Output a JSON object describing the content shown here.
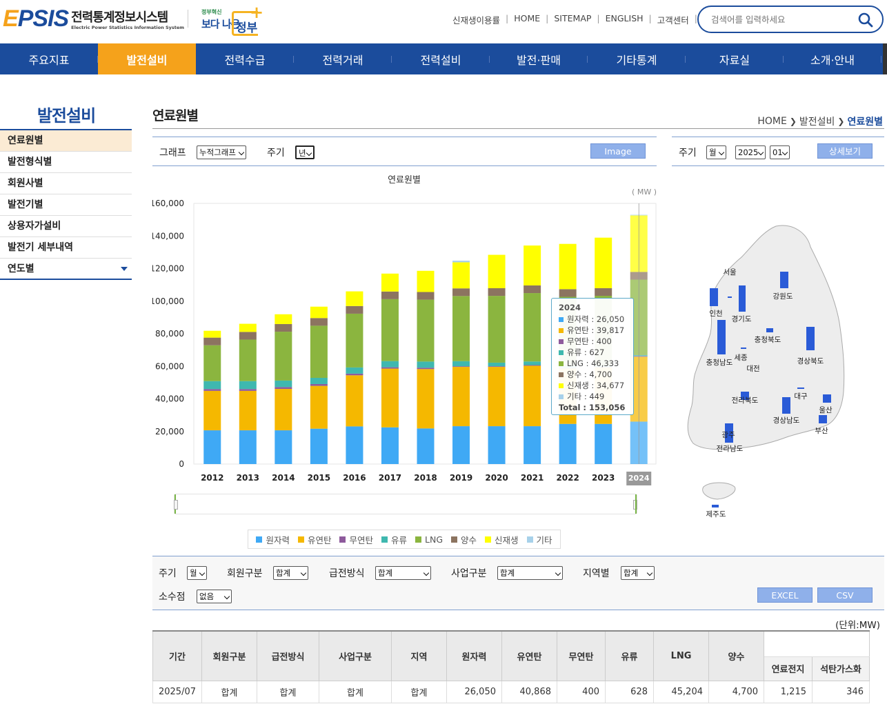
{
  "header": {
    "logo_word": "EPSIS",
    "logo_ko": "전력통계정보시스템",
    "logo_en": "Electric Power Statistics Information System",
    "gov_small": "정부혁신",
    "gov_big": "보다 나은",
    "gov_jb": "정부",
    "util_links": [
      "신재생이용률",
      "HOME",
      "SITEMAP",
      "ENGLISH",
      "고객센터"
    ],
    "search_placeholder": "검색어를 입력하세요"
  },
  "nav": [
    "주요지표",
    "발전설비",
    "전력수급",
    "전력거래",
    "전력설비",
    "발전·판매",
    "기타통계",
    "자료실",
    "소개·안내"
  ],
  "sidebar": {
    "title": "발전설비",
    "items": [
      "연료원별",
      "발전형식별",
      "회원사별",
      "발전기별",
      "상용자가설비",
      "발전기 세부내역",
      "연도별"
    ]
  },
  "page": {
    "title": "연료원별",
    "breadcrumb": [
      "HOME",
      "발전설비",
      "연료원별"
    ]
  },
  "toolbar": {
    "graph_label": "그래프",
    "graph_value": "누적그래프",
    "cycle_label": "주기",
    "cycle_value": "년",
    "image_button": "Image"
  },
  "map_toolbar": {
    "cycle_label": "주기",
    "cycle_value": "월",
    "year_value": "2025",
    "month_value": "01",
    "detail_button": "상세보기"
  },
  "map": {
    "regions": [
      "인천",
      "서울",
      "경기도",
      "강원도",
      "충청북도",
      "세종",
      "대전",
      "충청남도",
      "경상북도",
      "전라북도",
      "대구",
      "울산",
      "경상남도",
      "부산",
      "광주",
      "전라남도",
      "제주도"
    ]
  },
  "chart_data": {
    "type": "bar",
    "title": "연료원별",
    "unit": "( MW )",
    "categories": [
      "2012",
      "2013",
      "2014",
      "2015",
      "2016",
      "2017",
      "2018",
      "2019",
      "2020",
      "2021",
      "2022",
      "2023",
      "2024"
    ],
    "ylim": [
      0,
      160000
    ],
    "yticks": [
      "160,000",
      "140,000",
      "120,000",
      "100,000",
      "80,000",
      "60,000",
      "40,000",
      "20,000",
      "0"
    ],
    "stacked": true,
    "series": [
      {
        "name": "원자력",
        "color": "#3fa9f5",
        "values": [
          20716,
          20716,
          20716,
          21716,
          23116,
          22529,
          21850,
          23250,
          23250,
          23250,
          24650,
          24650,
          26050
        ]
      },
      {
        "name": "유연탄",
        "color": "#f5b800",
        "values": [
          24205,
          24205,
          25405,
          26274,
          31360,
          36058,
          36441,
          36393,
          36393,
          37100,
          34000,
          34600,
          39817
        ]
      },
      {
        "name": "무연탄",
        "color": "#8e5a9c",
        "values": [
          1125,
          1125,
          1125,
          1125,
          1025,
          825,
          825,
          400,
          400,
          400,
          400,
          400,
          400
        ]
      },
      {
        "name": "유류",
        "color": "#3fb8af",
        "values": [
          4866,
          4866,
          4000,
          3800,
          3800,
          3800,
          3800,
          3100,
          2200,
          2200,
          1100,
          627,
          627
        ]
      },
      {
        "name": "LNG",
        "color": "#8bb53f",
        "values": [
          22000,
          25500,
          30000,
          32000,
          33000,
          38000,
          38000,
          40000,
          41000,
          42000,
          42500,
          43000,
          46333
        ]
      },
      {
        "name": "양수",
        "color": "#8c7460",
        "values": [
          4700,
          4700,
          4700,
          4700,
          4700,
          4700,
          4700,
          4700,
          4700,
          4700,
          4700,
          4700,
          4700
        ]
      },
      {
        "name": "신재생",
        "color": "#ffff00",
        "values": [
          4200,
          5000,
          6000,
          7000,
          9000,
          11000,
          13000,
          16000,
          20500,
          24500,
          27800,
          31000,
          34677
        ]
      },
      {
        "name": "기타",
        "color": "#a7d1ea",
        "values": [
          0,
          0,
          0,
          0,
          0,
          0,
          0,
          1000,
          0,
          0,
          0,
          0,
          449
        ]
      }
    ],
    "highlight": "2024",
    "tooltip": {
      "year": "2024",
      "rows": [
        {
          "label": "원자력 : 26,050",
          "color": "#3fa9f5"
        },
        {
          "label": "유연탄 : 39,817",
          "color": "#f5b800"
        },
        {
          "label": "무연탄 : 400",
          "color": "#8e5a9c"
        },
        {
          "label": "유류 : 627",
          "color": "#3fb8af"
        },
        {
          "label": "LNG : 46,333",
          "color": "#8bb53f"
        },
        {
          "label": "양수 : 4,700",
          "color": "#8c7460"
        },
        {
          "label": "신재생 : 34,677",
          "color": "#ffff00"
        },
        {
          "label": "기타 : 449",
          "color": "#a7d1ea"
        }
      ],
      "total": "Total : 153,056"
    }
  },
  "filters": {
    "cycle_label": "주기",
    "cycle_value": "월",
    "member_label": "회원구분",
    "member_value": "합계",
    "supply_label": "급전방식",
    "supply_value": "합계",
    "biz_label": "사업구분",
    "biz_value": "합계",
    "region_label": "지역별",
    "region_value": "합계",
    "decimal_label": "소수점",
    "decimal_value": "없음",
    "excel_button": "EXCEL",
    "csv_button": "CSV"
  },
  "table": {
    "unit": "(단위:MW)",
    "headers": [
      "기간",
      "회원구분",
      "급전방식",
      "사업구분",
      "지역",
      "원자력",
      "유연탄",
      "무연탄",
      "유류",
      "LNG",
      "양수"
    ],
    "sub_headers": [
      "연료전지",
      "석탄가스화"
    ],
    "rows": [
      [
        "2025/07",
        "합계",
        "합계",
        "합계",
        "합계",
        "26,050",
        "40,868",
        "400",
        "628",
        "45,204",
        "4,700",
        "1,215",
        "346"
      ]
    ]
  }
}
